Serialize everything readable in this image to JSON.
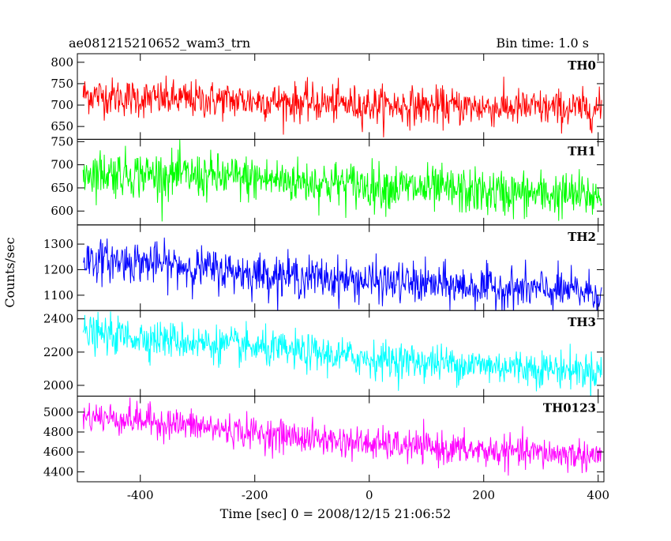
{
  "header": {
    "left_title": "ae081215210652_wam3_trn",
    "right_title": "Bin time: 1.0 s"
  },
  "chart_data": {
    "type": "line",
    "xlabel": "Time [sec] 0 = 2008/12/15 21:06:52",
    "ylabel": "Counts/sec",
    "xlim": [
      -510,
      410
    ],
    "x_ticks": [
      -400,
      -200,
      0,
      200,
      400
    ],
    "x_range": [
      -500,
      406
    ],
    "grid": false,
    "panels": [
      {
        "name": "TH0",
        "color": "#ff0000",
        "ylim": [
          620,
          820
        ],
        "y_ticks": [
          650,
          700,
          750,
          800
        ],
        "trend": {
          "x": [
            -500,
            -400,
            -200,
            0,
            200,
            406
          ],
          "y": [
            725,
            715,
            710,
            700,
            695,
            690
          ]
        },
        "noise_sd": 22
      },
      {
        "name": "TH1",
        "color": "#00ff00",
        "ylim": [
          570,
          755
        ],
        "y_ticks": [
          600,
          650,
          700,
          750
        ],
        "trend": {
          "x": [
            -500,
            -400,
            -200,
            0,
            200,
            406
          ],
          "y": [
            685,
            680,
            670,
            655,
            640,
            632
          ]
        },
        "noise_sd": 25
      },
      {
        "name": "TH2",
        "color": "#0000ff",
        "ylim": [
          1040,
          1375
        ],
        "y_ticks": [
          1100,
          1200,
          1300
        ],
        "trend": {
          "x": [
            -500,
            -400,
            -200,
            0,
            200,
            406
          ],
          "y": [
            1240,
            1230,
            1185,
            1155,
            1130,
            1110
          ]
        },
        "noise_sd": 40
      },
      {
        "name": "TH3",
        "color": "#00ffff",
        "ylim": [
          1935,
          2450
        ],
        "y_ticks": [
          2000,
          2200,
          2400
        ],
        "trend": {
          "x": [
            -500,
            -400,
            -200,
            0,
            200,
            406
          ],
          "y": [
            2310,
            2290,
            2225,
            2160,
            2120,
            2085
          ]
        },
        "noise_sd": 55
      },
      {
        "name": "TH0123",
        "color": "#ff00ff",
        "ylim": [
          4300,
          5160
        ],
        "y_ticks": [
          4400,
          4600,
          4800,
          5000
        ],
        "trend": {
          "x": [
            -500,
            -400,
            -200,
            0,
            200,
            406
          ],
          "y": [
            4960,
            4920,
            4790,
            4680,
            4610,
            4560
          ]
        },
        "noise_sd": 80
      }
    ]
  }
}
